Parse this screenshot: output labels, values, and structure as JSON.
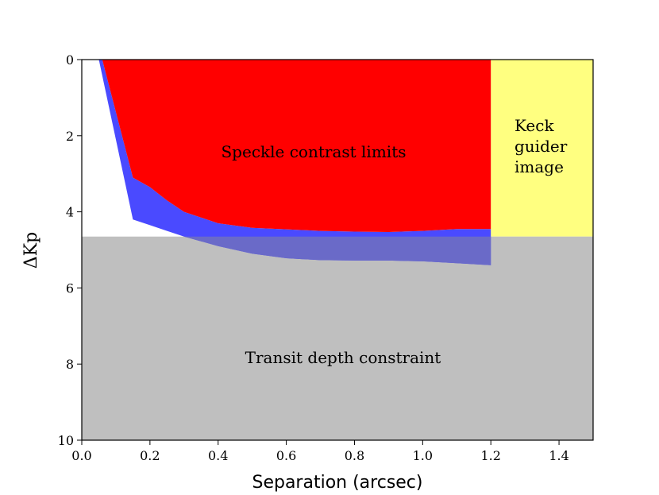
{
  "chart_data": {
    "type": "area",
    "title": "",
    "xlabel": "Separation (arcsec)",
    "ylabel": "ΔKp",
    "xlim": [
      0.0,
      1.5
    ],
    "ylim": [
      10,
      0
    ],
    "y_inverted": true,
    "x_ticks": [
      0.0,
      0.2,
      0.4,
      0.6,
      0.8,
      1.0,
      1.2,
      1.4
    ],
    "x_tick_labels": [
      "0.0",
      "0.2",
      "0.4",
      "0.6",
      "0.8",
      "1.0",
      "1.2",
      "1.4"
    ],
    "y_ticks": [
      0,
      2,
      4,
      6,
      8,
      10
    ],
    "y_tick_labels": [
      "0",
      "2",
      "4",
      "6",
      "8",
      "10"
    ],
    "grid": false,
    "colors": {
      "speckle": "#ff0000",
      "blue_band": "#4a4aff",
      "keck": "#ffff80",
      "transit": "#bfbfbf",
      "overlap": "#6a6ac8"
    },
    "regions": {
      "transit_depth_limit": 4.65,
      "keck_x_range": [
        1.2,
        1.5
      ]
    },
    "speckle_limit": {
      "x": [
        0.06,
        0.15,
        0.2,
        0.25,
        0.3,
        0.4,
        0.5,
        0.6,
        0.7,
        0.8,
        0.9,
        1.0,
        1.1,
        1.2
      ],
      "y": [
        0.0,
        3.1,
        3.35,
        3.7,
        4.0,
        4.3,
        4.42,
        4.46,
        4.5,
        4.52,
        4.53,
        4.5,
        4.45,
        4.45
      ]
    },
    "speckle_limit_deep": {
      "x": [
        0.05,
        0.15,
        0.2,
        0.25,
        0.3,
        0.4,
        0.5,
        0.6,
        0.7,
        0.8,
        0.9,
        1.0,
        1.1,
        1.2
      ],
      "y": [
        0.0,
        4.2,
        4.35,
        4.5,
        4.65,
        4.9,
        5.1,
        5.22,
        5.27,
        5.28,
        5.28,
        5.3,
        5.35,
        5.4
      ]
    },
    "annotations": [
      "Speckle contrast limits",
      "Keck",
      "guider",
      "image",
      "Transit depth constraint"
    ]
  }
}
